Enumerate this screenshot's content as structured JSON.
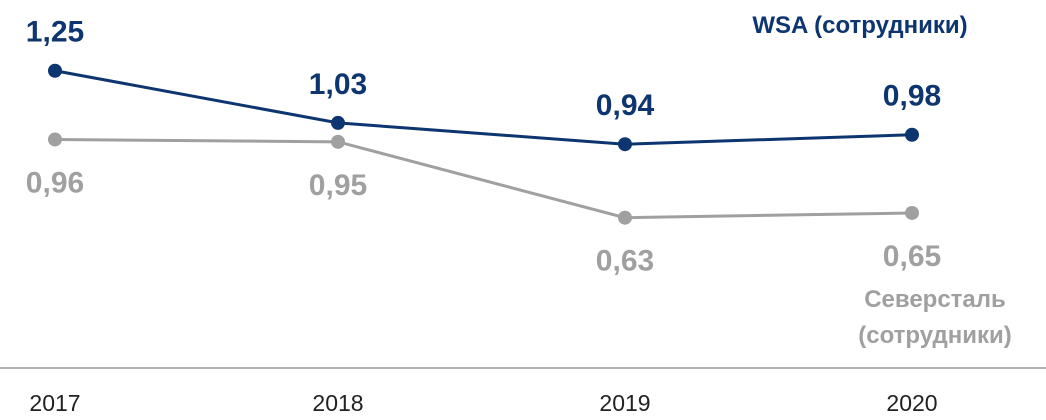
{
  "chart_data": {
    "type": "line",
    "categories": [
      "2017",
      "2018",
      "2019",
      "2020"
    ],
    "series": [
      {
        "name": "WSA (сотрудники)",
        "color": "#0d3570",
        "values": [
          1.25,
          1.03,
          0.94,
          0.98
        ],
        "value_labels": [
          "1,25",
          "1,03",
          "0,94",
          "0,98"
        ]
      },
      {
        "name": "Северсталь (сотрудники)",
        "color": "#a0a0a0",
        "values": [
          0.96,
          0.95,
          0.63,
          0.65
        ],
        "value_labels": [
          "0,96",
          "0,95",
          "0,63",
          "0,65"
        ]
      }
    ],
    "ylim": [
      0,
      1.5
    ]
  }
}
